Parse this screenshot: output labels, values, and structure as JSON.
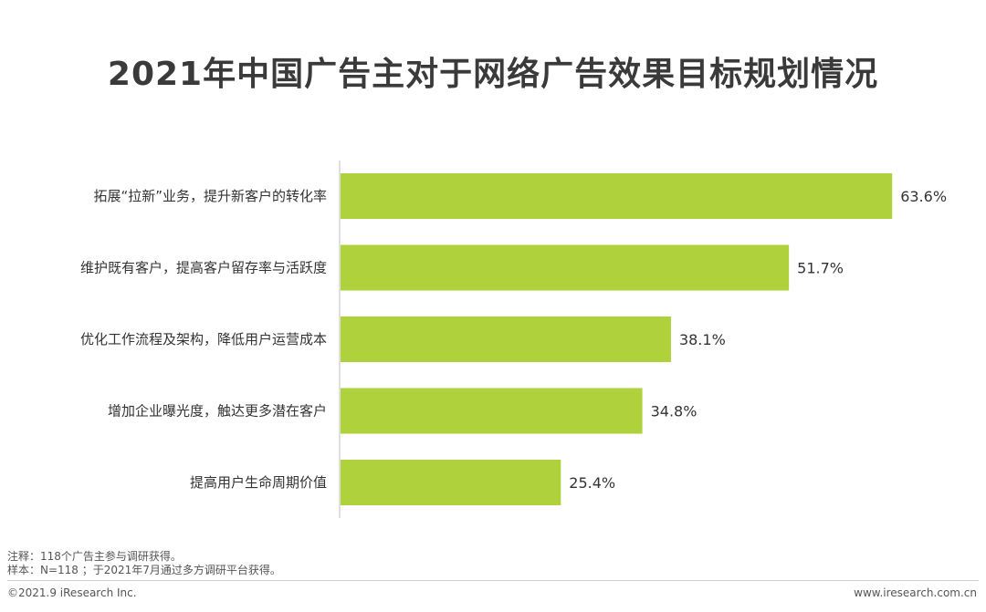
{
  "title": "2021年中国广告主对于网络广告效果目标规划情况",
  "chart_data": {
    "type": "bar",
    "orientation": "horizontal",
    "categories": [
      "拓展“拉新”业务，提升新客户的转化率",
      "维护既有客户，提高客户留存率与活跃度",
      "优化工作流程及架构，降低用户运营成本",
      "增加企业曝光度，触达更多潜在客户",
      "提高用户生命周期价值"
    ],
    "values": [
      63.6,
      51.7,
      38.1,
      34.8,
      25.4
    ],
    "value_labels": [
      "63.6%",
      "51.7%",
      "38.1%",
      "34.8%",
      "25.4%"
    ],
    "unit": "%",
    "xlim": [
      0,
      64
    ],
    "grid": false,
    "legend": "none",
    "bar_color": "#afd13b",
    "axis_color": "#bfbfbf"
  },
  "notes": [
    "注释：118个广告主参与调研获得。",
    "样本：N=118 ；于2021年7月通过多方调研平台获得。"
  ],
  "footer": {
    "left": "©2021.9 iResearch Inc.",
    "right": "www.iresearch.com.cn"
  }
}
